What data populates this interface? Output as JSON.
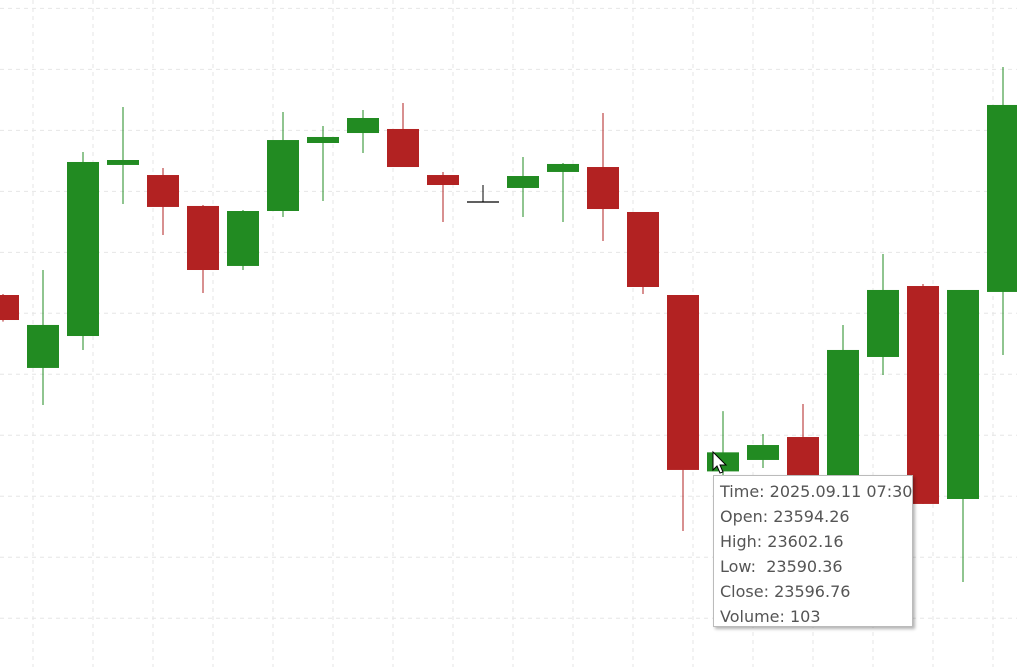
{
  "chart_data": {
    "type": "candlestick",
    "x": [
      null,
      null,
      null,
      null,
      null,
      null,
      null,
      null,
      null,
      null,
      null,
      null,
      null,
      null,
      null,
      null,
      null,
      null,
      "2025.09.11 07:30",
      null,
      null,
      null,
      null,
      null,
      null,
      null
    ],
    "open": [
      23617.4,
      23607.83,
      23612.02,
      23634.46,
      23633.14,
      23629.08,
      23621.21,
      23628.42,
      23637.34,
      23638.65,
      23639.18,
      23633.14,
      23629.6,
      23631.44,
      23633.54,
      23634.19,
      23628.29,
      23617.4,
      23594.26,
      23595.76,
      23598.77,
      23593.13,
      23609.27,
      23618.58,
      23590.64,
      23617.8
    ],
    "high": [
      23617.53,
      23620.68,
      23636.16,
      23642.06,
      23634.06,
      23629.21,
      23628.55,
      23641.41,
      23639.57,
      23641.67,
      23642.59,
      23633.54,
      23631.83,
      23635.5,
      23634.72,
      23641.28,
      23628.29,
      23617.4,
      23602.16,
      23599.17,
      23603.1,
      23613.47,
      23622.78,
      23618.84,
      23618.06,
      23647.31
    ],
    "low": [
      23613.9,
      23602.97,
      23610.19,
      23629.34,
      23625.27,
      23617.66,
      23620.68,
      23627.63,
      23629.73,
      23636.03,
      23634.19,
      23626.98,
      23629.6,
      23627.63,
      23626.98,
      23624.49,
      23617.53,
      23586.44,
      23590.36,
      23594.71,
      23593.13,
      23591.82,
      23606.91,
      23589.99,
      23579.75,
      23609.53
    ],
    "close": [
      23614.12,
      23613.47,
      23634.85,
      23635.11,
      23628.95,
      23620.68,
      23628.42,
      23637.73,
      23638.13,
      23640.62,
      23634.19,
      23631.83,
      23629.6,
      23633.01,
      23634.59,
      23628.68,
      23618.45,
      23594.45,
      23596.76,
      23597.72,
      23593.79,
      23610.19,
      23618.06,
      23589.99,
      23618.06,
      23642.33
    ],
    "volume": [
      null,
      null,
      null,
      null,
      null,
      null,
      null,
      null,
      null,
      null,
      null,
      null,
      null,
      null,
      null,
      null,
      null,
      null,
      103,
      null,
      null,
      null,
      null,
      null,
      null,
      null
    ],
    "up_color": "#228b22",
    "down_color": "#b22222",
    "doji_color": "#000000",
    "ylim": [
      23568.6,
      23656.1
    ],
    "yticks": [
      23575,
      23583,
      23591,
      23599,
      23607,
      23615,
      23623,
      23631,
      23639,
      23647,
      23655
    ],
    "grid": true,
    "tooltip": {
      "labels": [
        "Time:",
        "Open:",
        "High:",
        "Low: ",
        "Close:",
        "Volume:"
      ]
    }
  }
}
